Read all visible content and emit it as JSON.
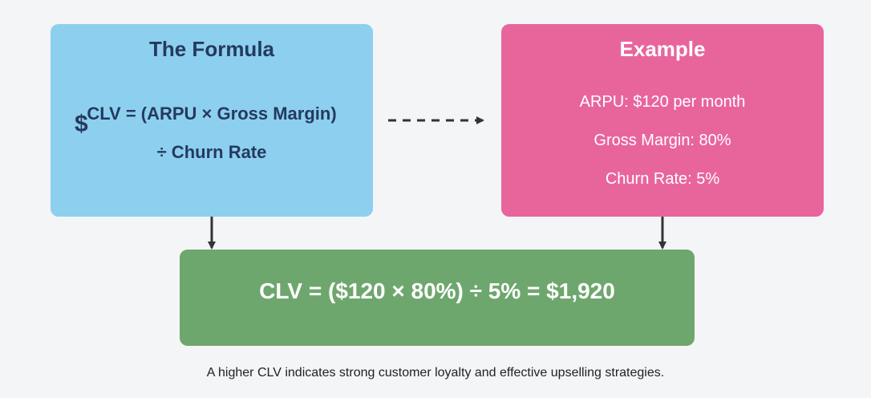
{
  "formula": {
    "title": "The Formula",
    "line1": "CLV = (ARPU × Gross Margin)",
    "line2": "÷ Churn Rate",
    "icon": "dollar-icon",
    "icon_glyph": "$"
  },
  "example": {
    "title": "Example",
    "items": [
      "ARPU: $120 per month",
      "Gross Margin: 80%",
      "Churn Rate: 5%"
    ]
  },
  "result": {
    "text": "CLV = ($120 × 80%) ÷ 5% = $1,920"
  },
  "caption": "A higher CLV indicates strong customer loyalty and effective upselling strategies.",
  "colors": {
    "formula_box": "#8dcfef",
    "example_box": "#e8659c",
    "result_box": "#6ea76e",
    "formula_text": "#243a5e",
    "arrow": "#333333"
  }
}
